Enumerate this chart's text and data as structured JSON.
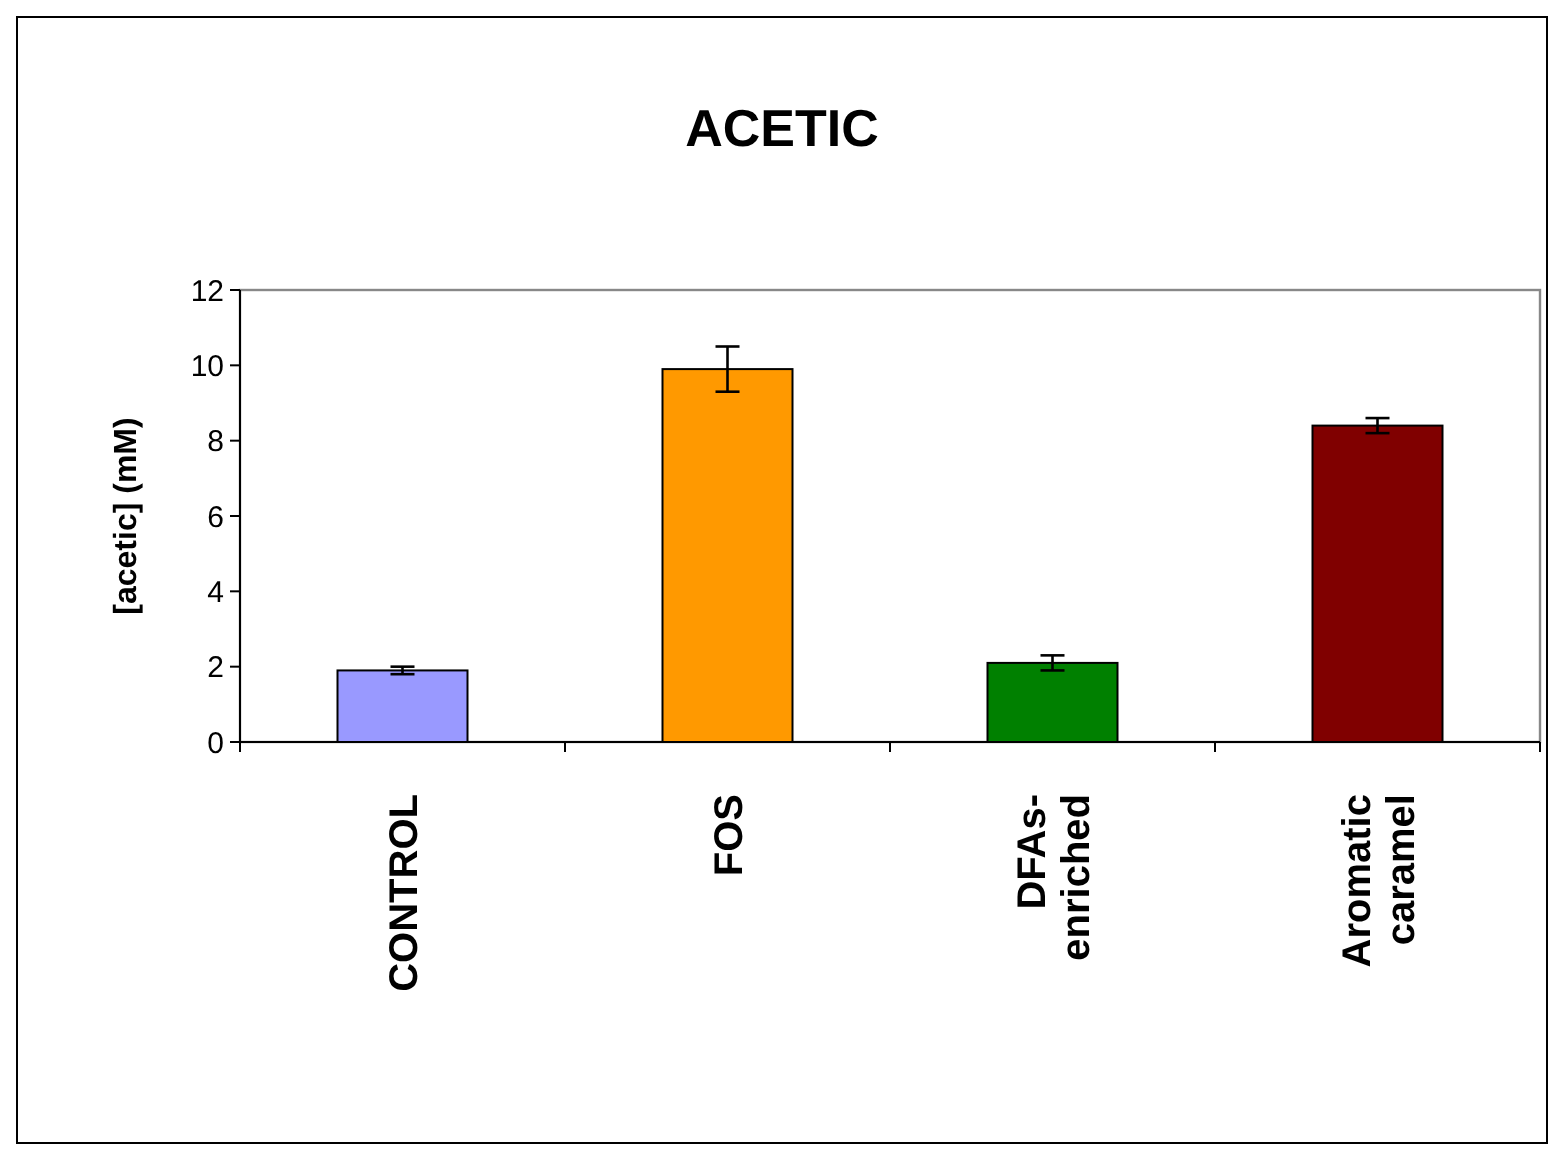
{
  "chart_data": {
    "type": "bar",
    "title": "ACETIC",
    "ylabel": "[acetic] (mM)",
    "categories": [
      "CONTROL",
      "FOS",
      "DFAs-enriched",
      "Aromatic caramel"
    ],
    "values": [
      1.9,
      9.9,
      2.1,
      8.4
    ],
    "colors": [
      "#9999ff",
      "#ff9900",
      "#008000",
      "#800000"
    ],
    "errors": [
      0.1,
      0.6,
      0.2,
      0.2
    ],
    "ylim": [
      0,
      12
    ],
    "yticks": [
      0,
      2,
      4,
      6,
      8,
      10,
      12
    ],
    "grid": false
  }
}
